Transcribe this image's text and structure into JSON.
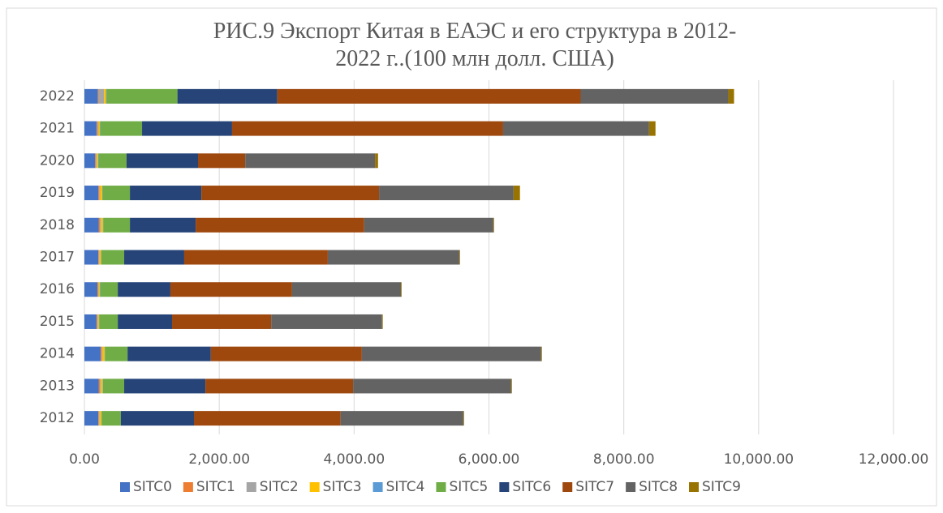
{
  "chart_data": {
    "type": "stacked-barh",
    "title": "РИС.9 Экспорт Китая в ЕАЭС и его структура в 2012-2022 г..(100 млн долл. США)",
    "categories": [
      "2012",
      "2013",
      "2014",
      "2015",
      "2016",
      "2017",
      "2018",
      "2019",
      "2020",
      "2021",
      "2022"
    ],
    "series": [
      {
        "name": "SITC0",
        "color": "#4472c4",
        "values": [
          205,
          215,
          240,
          180,
          195,
          205,
          215,
          205,
          160,
          180,
          200
        ]
      },
      {
        "name": "SITC1",
        "color": "#ed7d31",
        "values": [
          10,
          15,
          15,
          10,
          10,
          10,
          15,
          15,
          10,
          10,
          10
        ]
      },
      {
        "name": "SITC2",
        "color": "#a5a5a5",
        "values": [
          10,
          15,
          15,
          10,
          10,
          10,
          15,
          15,
          15,
          20,
          80
        ]
      },
      {
        "name": "SITC3",
        "color": "#ffc000",
        "values": [
          25,
          25,
          30,
          15,
          15,
          20,
          30,
          30,
          20,
          20,
          30
        ]
      },
      {
        "name": "SITC4",
        "color": "#5b9bd5",
        "values": [
          5,
          5,
          5,
          5,
          5,
          5,
          5,
          5,
          5,
          5,
          10
        ]
      },
      {
        "name": "SITC5",
        "color": "#70ad47",
        "values": [
          285,
          315,
          335,
          275,
          260,
          340,
          395,
          405,
          415,
          620,
          1050
        ]
      },
      {
        "name": "SITC6",
        "color": "#264478",
        "values": [
          1085,
          1205,
          1235,
          805,
          780,
          890,
          975,
          1060,
          1060,
          1335,
          1480
        ]
      },
      {
        "name": "SITC7",
        "color": "#9e480e",
        "values": [
          2175,
          2190,
          2240,
          1470,
          1805,
          2130,
          2500,
          2635,
          700,
          4020,
          4500
        ]
      },
      {
        "name": "SITC8",
        "color": "#636363",
        "values": [
          1820,
          2345,
          2660,
          1645,
          1615,
          1950,
          1915,
          1995,
          1925,
          2165,
          2190
        ]
      },
      {
        "name": "SITC9",
        "color": "#997300",
        "values": [
          10,
          10,
          10,
          10,
          10,
          10,
          10,
          95,
          45,
          95,
          85
        ]
      }
    ],
    "xlim": [
      0,
      12000
    ],
    "xticks": [
      {
        "value": 0,
        "label": "0.00"
      },
      {
        "value": 2000,
        "label": "2,000.00"
      },
      {
        "value": 4000,
        "label": "4,000.00"
      },
      {
        "value": 6000,
        "label": "6,000.00"
      },
      {
        "value": 8000,
        "label": "8,000.00"
      },
      {
        "value": 10000,
        "label": "10,000.00"
      },
      {
        "value": 12000,
        "label": "12,000.00"
      }
    ],
    "grid": true,
    "legend": "bottom"
  }
}
